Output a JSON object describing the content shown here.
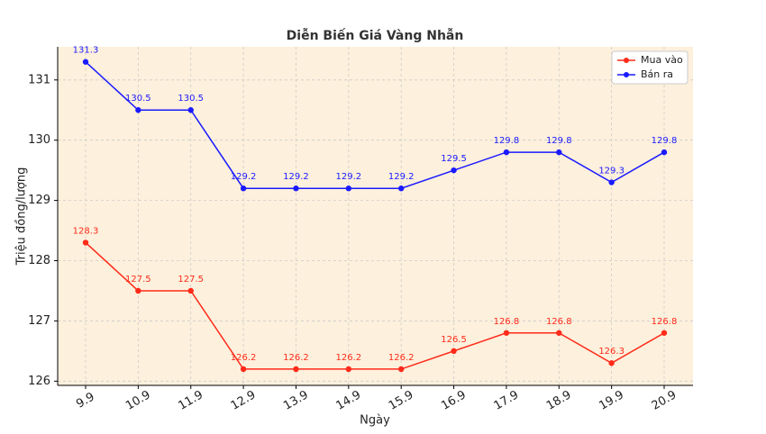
{
  "chart_data": {
    "type": "line",
    "title": "Diễn Biến Giá Vàng Nhẫn",
    "x_label": "Ngày",
    "y_label": "Triệu đồng/lượng",
    "categories": [
      "9.9",
      "10.9",
      "11.9",
      "12.9",
      "13.9",
      "14.9",
      "15.9",
      "16.9",
      "17.9",
      "18.9",
      "19.9",
      "20.9"
    ],
    "series": [
      {
        "name": "Mua vào",
        "color": "#ff2a1a",
        "values": [
          128.3,
          127.5,
          127.5,
          126.2,
          126.2,
          126.2,
          126.2,
          126.5,
          126.8,
          126.8,
          126.3,
          126.8
        ]
      },
      {
        "name": "Bán ra",
        "color": "#1a1aff",
        "values": [
          131.3,
          130.5,
          130.5,
          129.2,
          129.2,
          129.2,
          129.2,
          129.5,
          129.8,
          129.8,
          129.3,
          129.8
        ]
      }
    ],
    "ylim": [
      125.93,
      131.55
    ],
    "yticks": [
      126,
      127,
      128,
      129,
      130,
      131
    ],
    "grid": true,
    "legend": "upper right",
    "background": "#fdf0dc"
  }
}
